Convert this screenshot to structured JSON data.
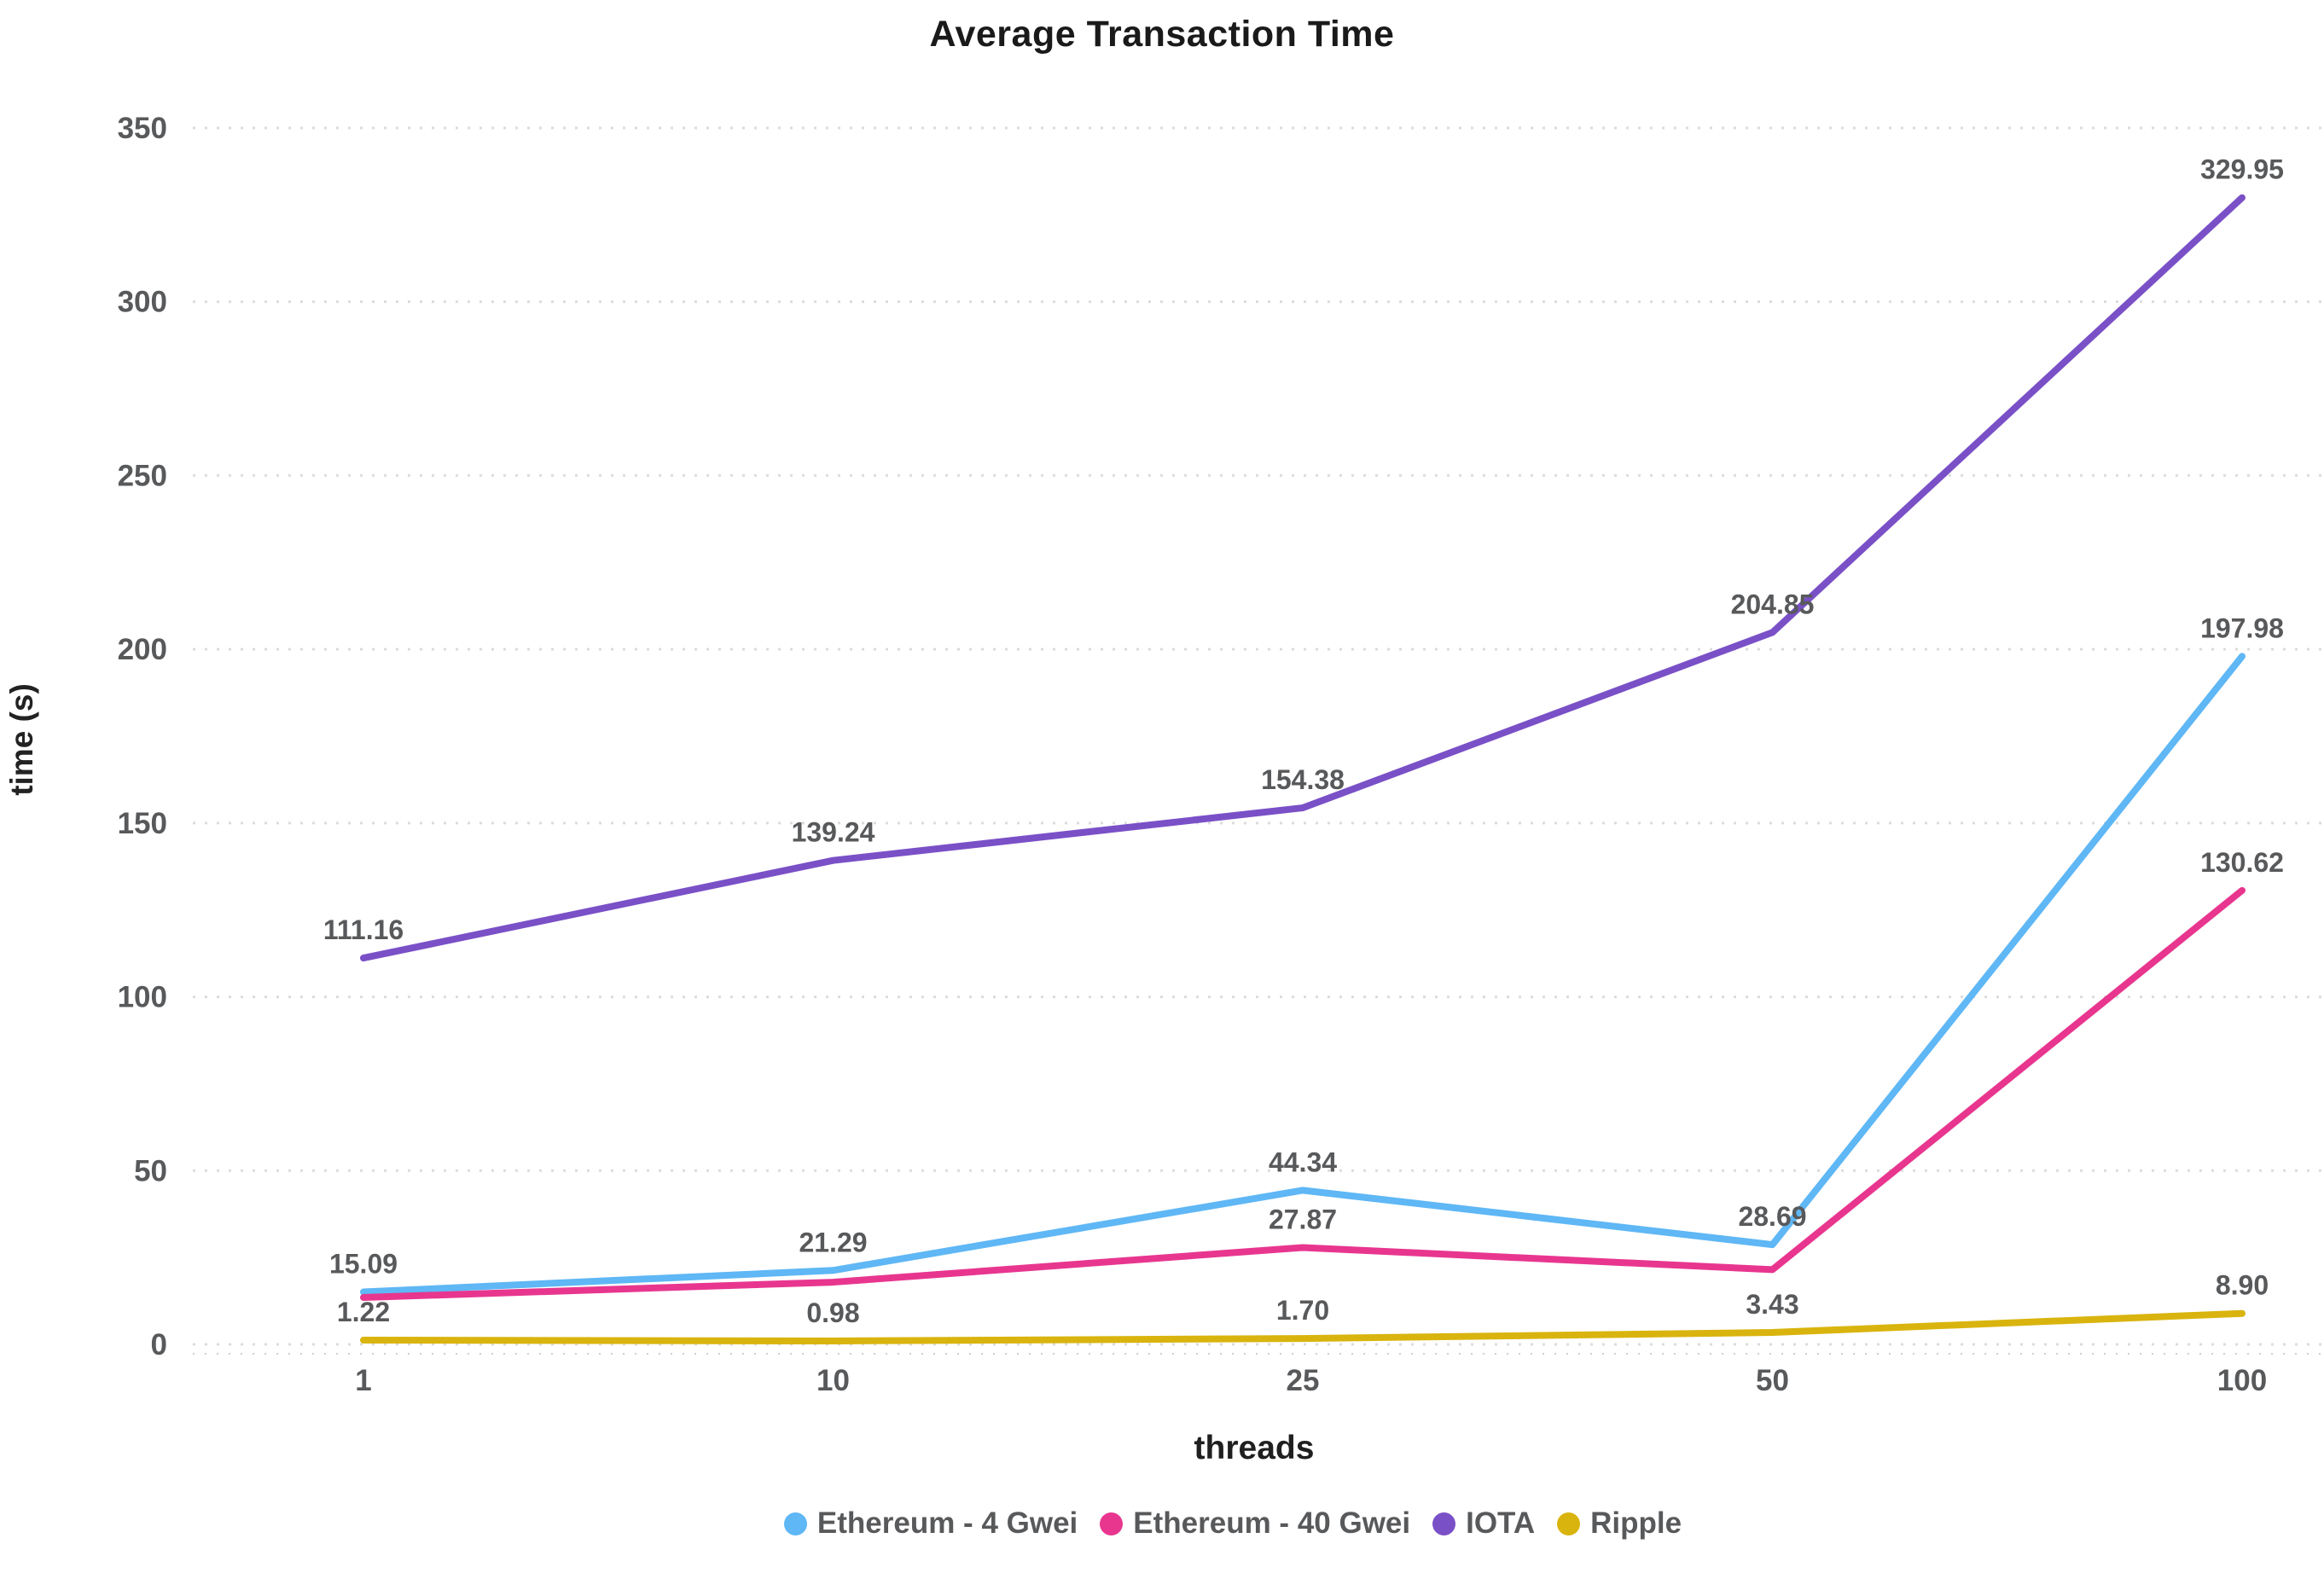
{
  "title": "Average Transaction Time",
  "axes": {
    "y_title": "time (s)",
    "x_title": "threads",
    "y_ticks": [
      "0",
      "50",
      "100",
      "150",
      "200",
      "250",
      "300",
      "350"
    ],
    "x_ticks": [
      "1",
      "10",
      "25",
      "50",
      "100"
    ]
  },
  "legend": [
    {
      "label": "Ethereum - 4 Gwei",
      "color": "#5fb7f5"
    },
    {
      "label": "Ethereum - 40 Gwei",
      "color": "#e8368f"
    },
    {
      "label": "IOTA",
      "color": "#7a50c7"
    },
    {
      "label": "Ripple",
      "color": "#d9b40e"
    }
  ],
  "chart_data": {
    "type": "line",
    "title": "Average Transaction Time",
    "xlabel": "threads",
    "ylabel": "time (s)",
    "x_categories": [
      "1",
      "10",
      "25",
      "50",
      "100"
    ],
    "ylim": [
      0,
      350
    ],
    "y_tick_step": 50,
    "grid": "horizontal-dotted",
    "legend_position": "bottom",
    "series": [
      {
        "name": "Ethereum - 4 Gwei",
        "color": "#5fb7f5",
        "values": [
          15.09,
          21.29,
          44.34,
          28.69,
          197.98
        ],
        "point_labels": [
          "15.09",
          "21.29",
          "44.34",
          "28.69",
          "197.98"
        ]
      },
      {
        "name": "Ethereum - 40 Gwei",
        "color": "#e8368f",
        "values": [
          13.5,
          17.9,
          27.87,
          21.5,
          130.62
        ],
        "point_labels": [
          null,
          null,
          "27.87",
          null,
          "130.62"
        ]
      },
      {
        "name": "IOTA",
        "color": "#7a50c7",
        "values": [
          111.16,
          139.24,
          154.38,
          204.85,
          329.95
        ],
        "point_labels": [
          "111.16",
          "139.24",
          "154.38",
          "204.85",
          "329.95"
        ]
      },
      {
        "name": "Ripple",
        "color": "#d9b40e",
        "values": [
          1.22,
          0.98,
          1.7,
          3.43,
          8.9
        ],
        "point_labels": [
          "1.22",
          "0.98",
          "1.70",
          "3.43",
          "8.90"
        ]
      }
    ]
  }
}
